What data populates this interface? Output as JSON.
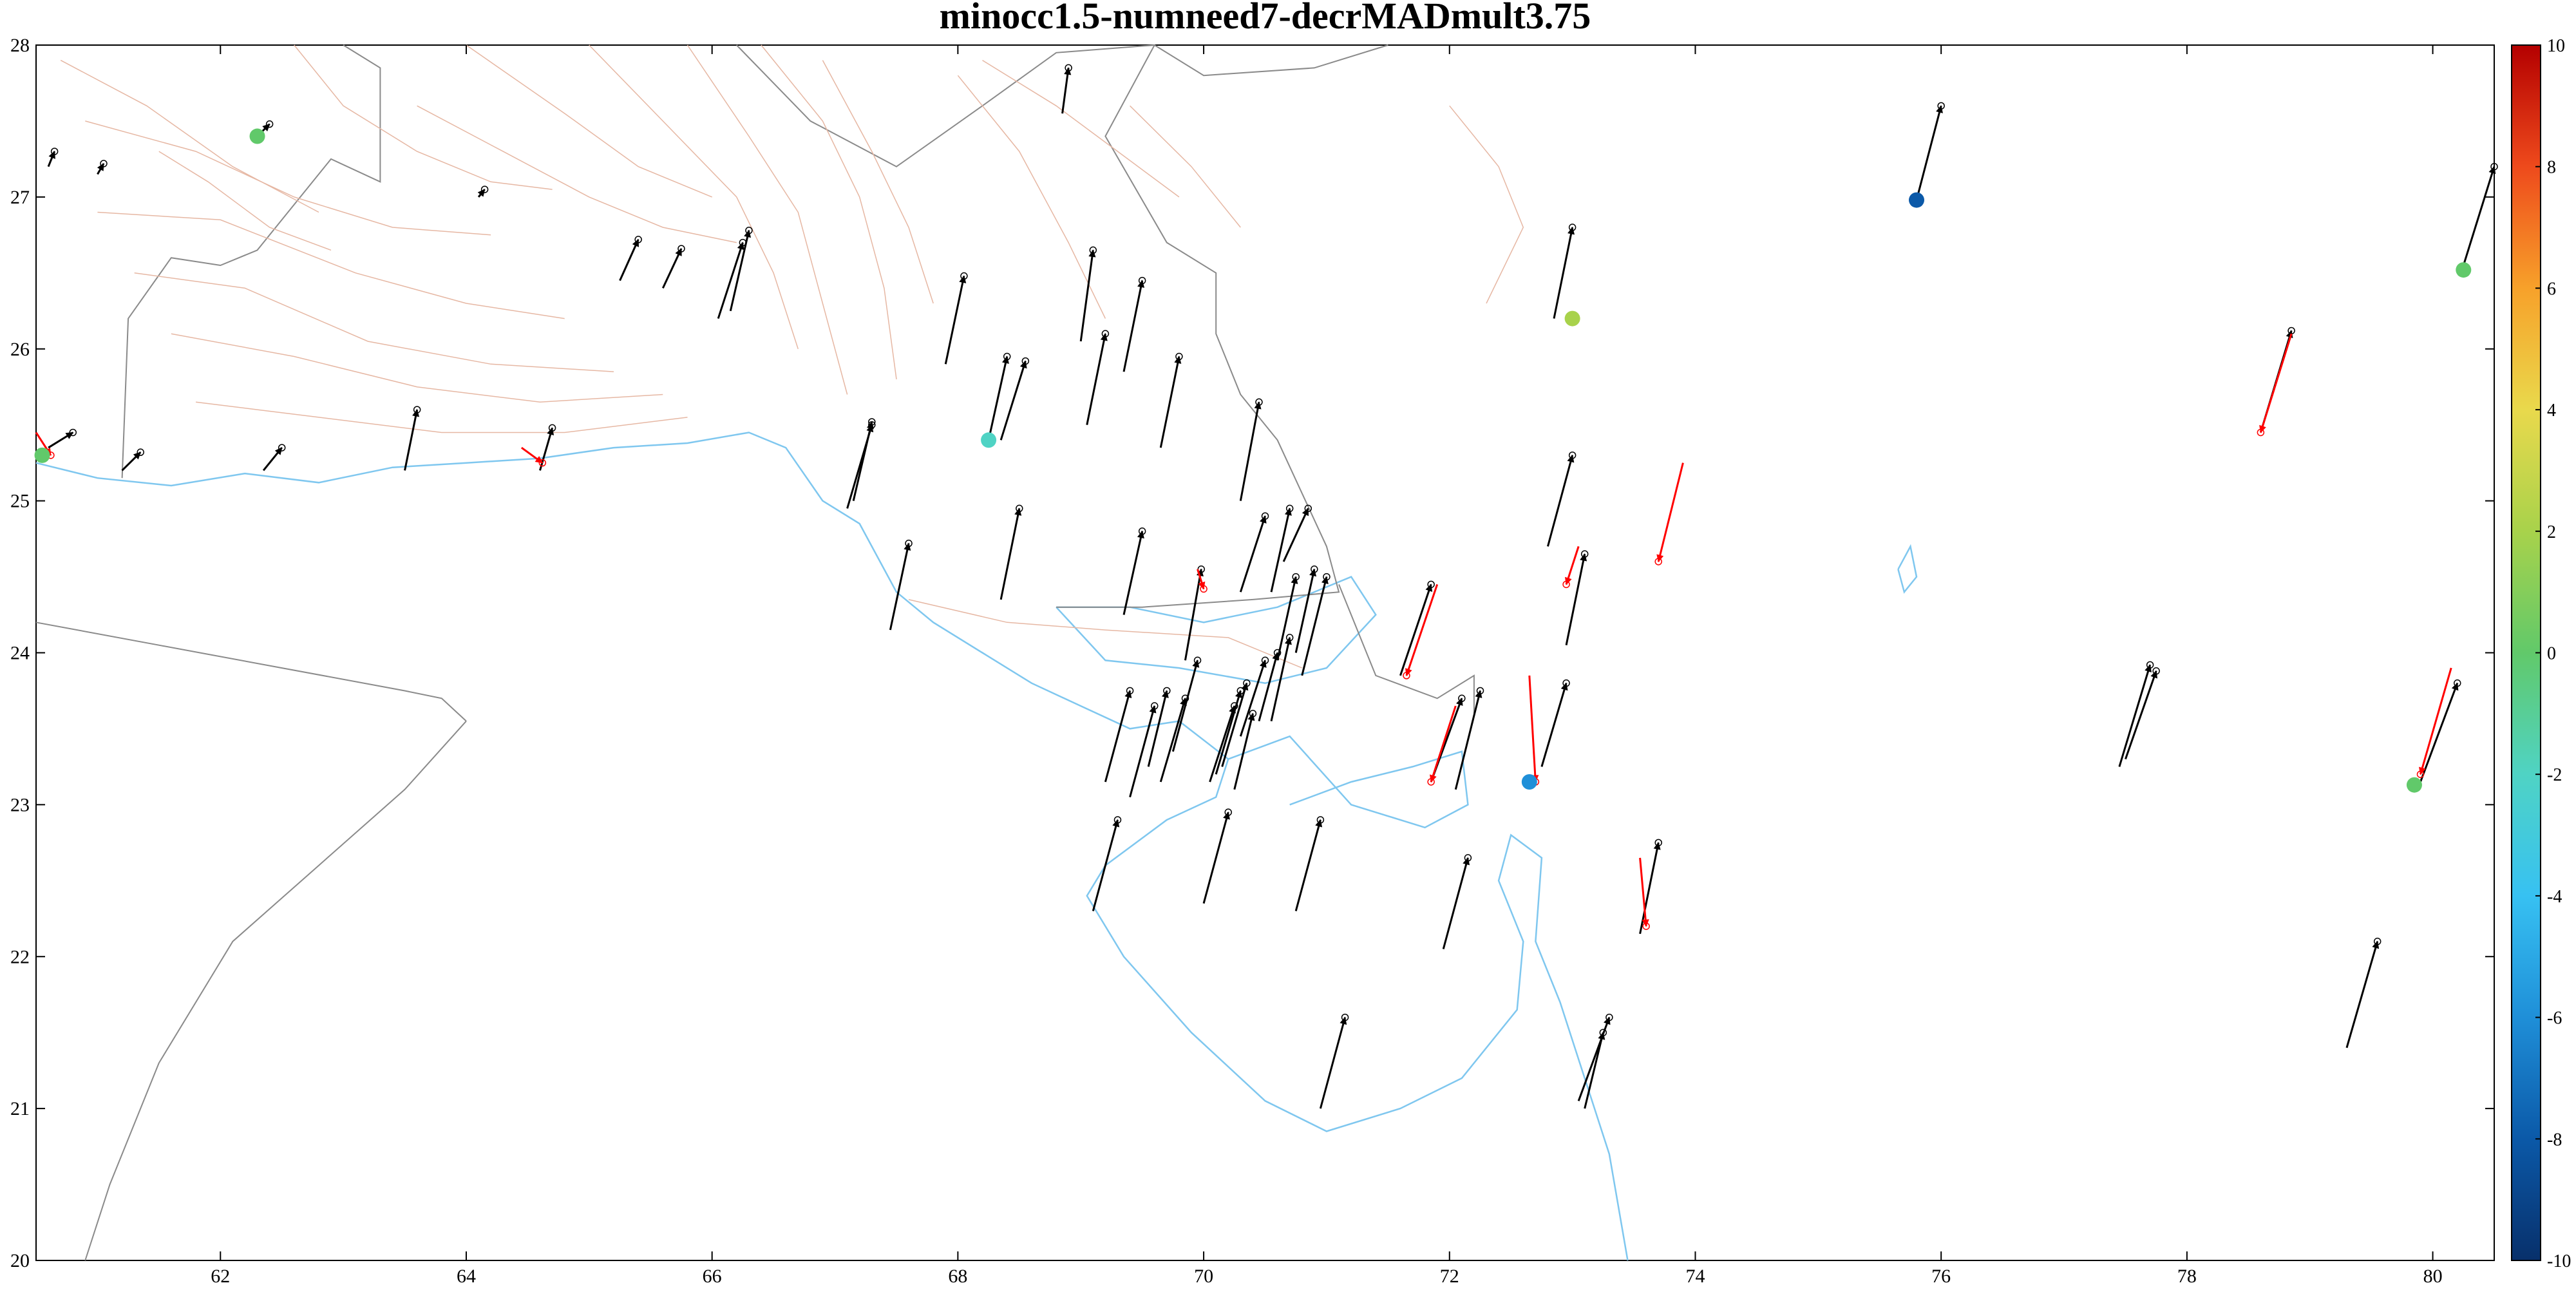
{
  "chart_data": {
    "type": "scatter",
    "title": "minocc1.5-numneed7-decrMADmult3.75",
    "xlabel": "",
    "ylabel": "",
    "xlim": [
      60.5,
      80.5
    ],
    "ylim": [
      20,
      28
    ],
    "x_ticks": [
      62,
      64,
      66,
      68,
      70,
      72,
      74,
      76,
      78,
      80
    ],
    "y_ticks": [
      20,
      21,
      22,
      23,
      24,
      25,
      26,
      27,
      28
    ],
    "grid": false,
    "colorbar": {
      "limits": [
        -10,
        10
      ],
      "ticks": [
        -10,
        -8,
        -6,
        -4,
        -2,
        0,
        2,
        4,
        6,
        8,
        10
      ],
      "colormap": [
        "#08306b",
        "#0b59a8",
        "#1f8fd8",
        "#37c1f2",
        "#4fd3c4",
        "#61c96a",
        "#a8d24b",
        "#e9d94c",
        "#f7a12a",
        "#ee4a1c",
        "#b40000"
      ],
      "placement": "right"
    },
    "colors": {
      "velocity_arrow": "#000000",
      "residual_arrow": "#ff0000",
      "coastline": "#7fc7ef",
      "political_border": "#8a8a8a",
      "fault_traces": "#e6b7a3"
    },
    "points": [
      {
        "x": 60.55,
        "y": 25.3,
        "value": -0.5
      },
      {
        "x": 62.3,
        "y": 27.4,
        "value": -0.5
      },
      {
        "x": 68.25,
        "y": 25.4,
        "value": -2.2
      },
      {
        "x": 73.0,
        "y": 26.2,
        "value": 1.8
      },
      {
        "x": 75.8,
        "y": 26.98,
        "value": -9.0
      },
      {
        "x": 80.25,
        "y": 26.52,
        "value": 0.6
      },
      {
        "x": 72.65,
        "y": 23.15,
        "value": -6.0
      },
      {
        "x": 79.85,
        "y": 23.13,
        "value": 0.4
      }
    ],
    "velocity_arrows": [
      [
        60.6,
        25.35,
        60.8,
        25.45
      ],
      [
        60.6,
        27.2,
        60.65,
        27.3
      ],
      [
        61.0,
        27.15,
        61.05,
        27.22
      ],
      [
        61.2,
        25.2,
        61.35,
        25.32
      ],
      [
        62.3,
        27.4,
        62.4,
        27.48
      ],
      [
        62.35,
        25.2,
        62.5,
        25.35
      ],
      [
        63.5,
        25.2,
        63.6,
        25.6
      ],
      [
        64.1,
        27.0,
        64.15,
        27.05
      ],
      [
        64.6,
        25.2,
        64.7,
        25.48
      ],
      [
        65.25,
        26.45,
        65.4,
        26.72
      ],
      [
        65.6,
        26.4,
        65.75,
        26.66
      ],
      [
        66.05,
        26.2,
        66.25,
        26.7
      ],
      [
        66.15,
        26.25,
        66.3,
        26.78
      ],
      [
        67.1,
        24.95,
        67.3,
        25.5
      ],
      [
        67.15,
        25.0,
        67.3,
        25.52
      ],
      [
        67.45,
        24.15,
        67.6,
        24.72
      ],
      [
        67.9,
        25.9,
        68.05,
        26.48
      ],
      [
        68.25,
        25.4,
        68.4,
        25.95
      ],
      [
        68.35,
        25.4,
        68.55,
        25.92
      ],
      [
        68.35,
        24.35,
        68.5,
        24.95
      ],
      [
        68.85,
        27.55,
        68.9,
        27.85
      ],
      [
        69.0,
        26.05,
        69.1,
        26.65
      ],
      [
        69.05,
        25.5,
        69.2,
        26.1
      ],
      [
        69.35,
        24.25,
        69.5,
        24.8
      ],
      [
        69.35,
        25.85,
        69.5,
        26.45
      ],
      [
        69.65,
        25.35,
        69.8,
        25.95
      ],
      [
        69.2,
        23.15,
        69.4,
        23.75
      ],
      [
        69.4,
        23.05,
        69.6,
        23.65
      ],
      [
        69.55,
        23.25,
        69.7,
        23.75
      ],
      [
        69.65,
        23.15,
        69.85,
        23.7
      ],
      [
        69.75,
        23.35,
        69.95,
        23.95
      ],
      [
        69.85,
        23.95,
        69.98,
        24.55
      ],
      [
        70.05,
        23.15,
        70.25,
        23.65
      ],
      [
        70.1,
        23.2,
        70.3,
        23.75
      ],
      [
        70.15,
        23.25,
        70.35,
        23.8
      ],
      [
        70.3,
        23.45,
        70.5,
        23.95
      ],
      [
        70.45,
        23.55,
        70.6,
        24.0
      ],
      [
        70.55,
        23.55,
        70.7,
        24.1
      ],
      [
        70.6,
        23.95,
        70.75,
        24.5
      ],
      [
        70.75,
        24.0,
        70.9,
        24.55
      ],
      [
        70.8,
        23.85,
        71.0,
        24.5
      ],
      [
        70.55,
        24.4,
        70.7,
        24.95
      ],
      [
        70.65,
        24.6,
        70.85,
        24.95
      ],
      [
        70.3,
        24.4,
        70.5,
        24.9
      ],
      [
        70.25,
        23.1,
        70.4,
        23.6
      ],
      [
        70.3,
        25.0,
        70.45,
        25.65
      ],
      [
        69.1,
        22.3,
        69.3,
        22.9
      ],
      [
        70.0,
        22.35,
        70.2,
        22.95
      ],
      [
        70.75,
        22.3,
        70.95,
        22.9
      ],
      [
        71.95,
        22.05,
        72.15,
        22.65
      ],
      [
        70.95,
        21.0,
        71.15,
        21.6
      ],
      [
        72.05,
        23.1,
        72.25,
        23.75
      ],
      [
        71.85,
        23.15,
        72.1,
        23.7
      ],
      [
        71.6,
        23.85,
        71.85,
        24.45
      ],
      [
        72.75,
        23.25,
        72.95,
        23.8
      ],
      [
        72.95,
        24.05,
        73.1,
        24.65
      ],
      [
        72.8,
        24.7,
        73.0,
        25.3
      ],
      [
        72.85,
        26.2,
        73.0,
        26.8
      ],
      [
        73.1,
        21.0,
        73.25,
        21.5
      ],
      [
        73.05,
        21.05,
        73.3,
        21.6
      ],
      [
        73.55,
        22.15,
        73.7,
        22.75
      ],
      [
        75.8,
        26.98,
        76.0,
        27.6
      ],
      [
        77.45,
        23.25,
        77.7,
        23.92
      ],
      [
        77.5,
        23.3,
        77.75,
        23.88
      ],
      [
        78.6,
        25.45,
        78.85,
        26.12
      ],
      [
        79.3,
        21.4,
        79.55,
        22.1
      ],
      [
        79.9,
        23.15,
        80.2,
        23.8
      ],
      [
        80.25,
        26.55,
        80.5,
        27.2
      ]
    ],
    "residual_arrows": [
      [
        60.5,
        25.45,
        60.62,
        25.3
      ],
      [
        64.45,
        25.35,
        64.62,
        25.25
      ],
      [
        69.95,
        24.55,
        70.0,
        24.42
      ],
      [
        71.9,
        24.45,
        71.65,
        23.85
      ],
      [
        72.05,
        23.65,
        71.85,
        23.15
      ],
      [
        72.65,
        23.85,
        72.7,
        23.15
      ],
      [
        73.9,
        25.25,
        73.7,
        24.6
      ],
      [
        73.55,
        22.65,
        73.6,
        22.2
      ],
      [
        78.85,
        26.1,
        78.6,
        25.45
      ],
      [
        80.15,
        23.9,
        79.9,
        23.2
      ],
      [
        73.05,
        24.7,
        72.95,
        24.45
      ]
    ]
  }
}
